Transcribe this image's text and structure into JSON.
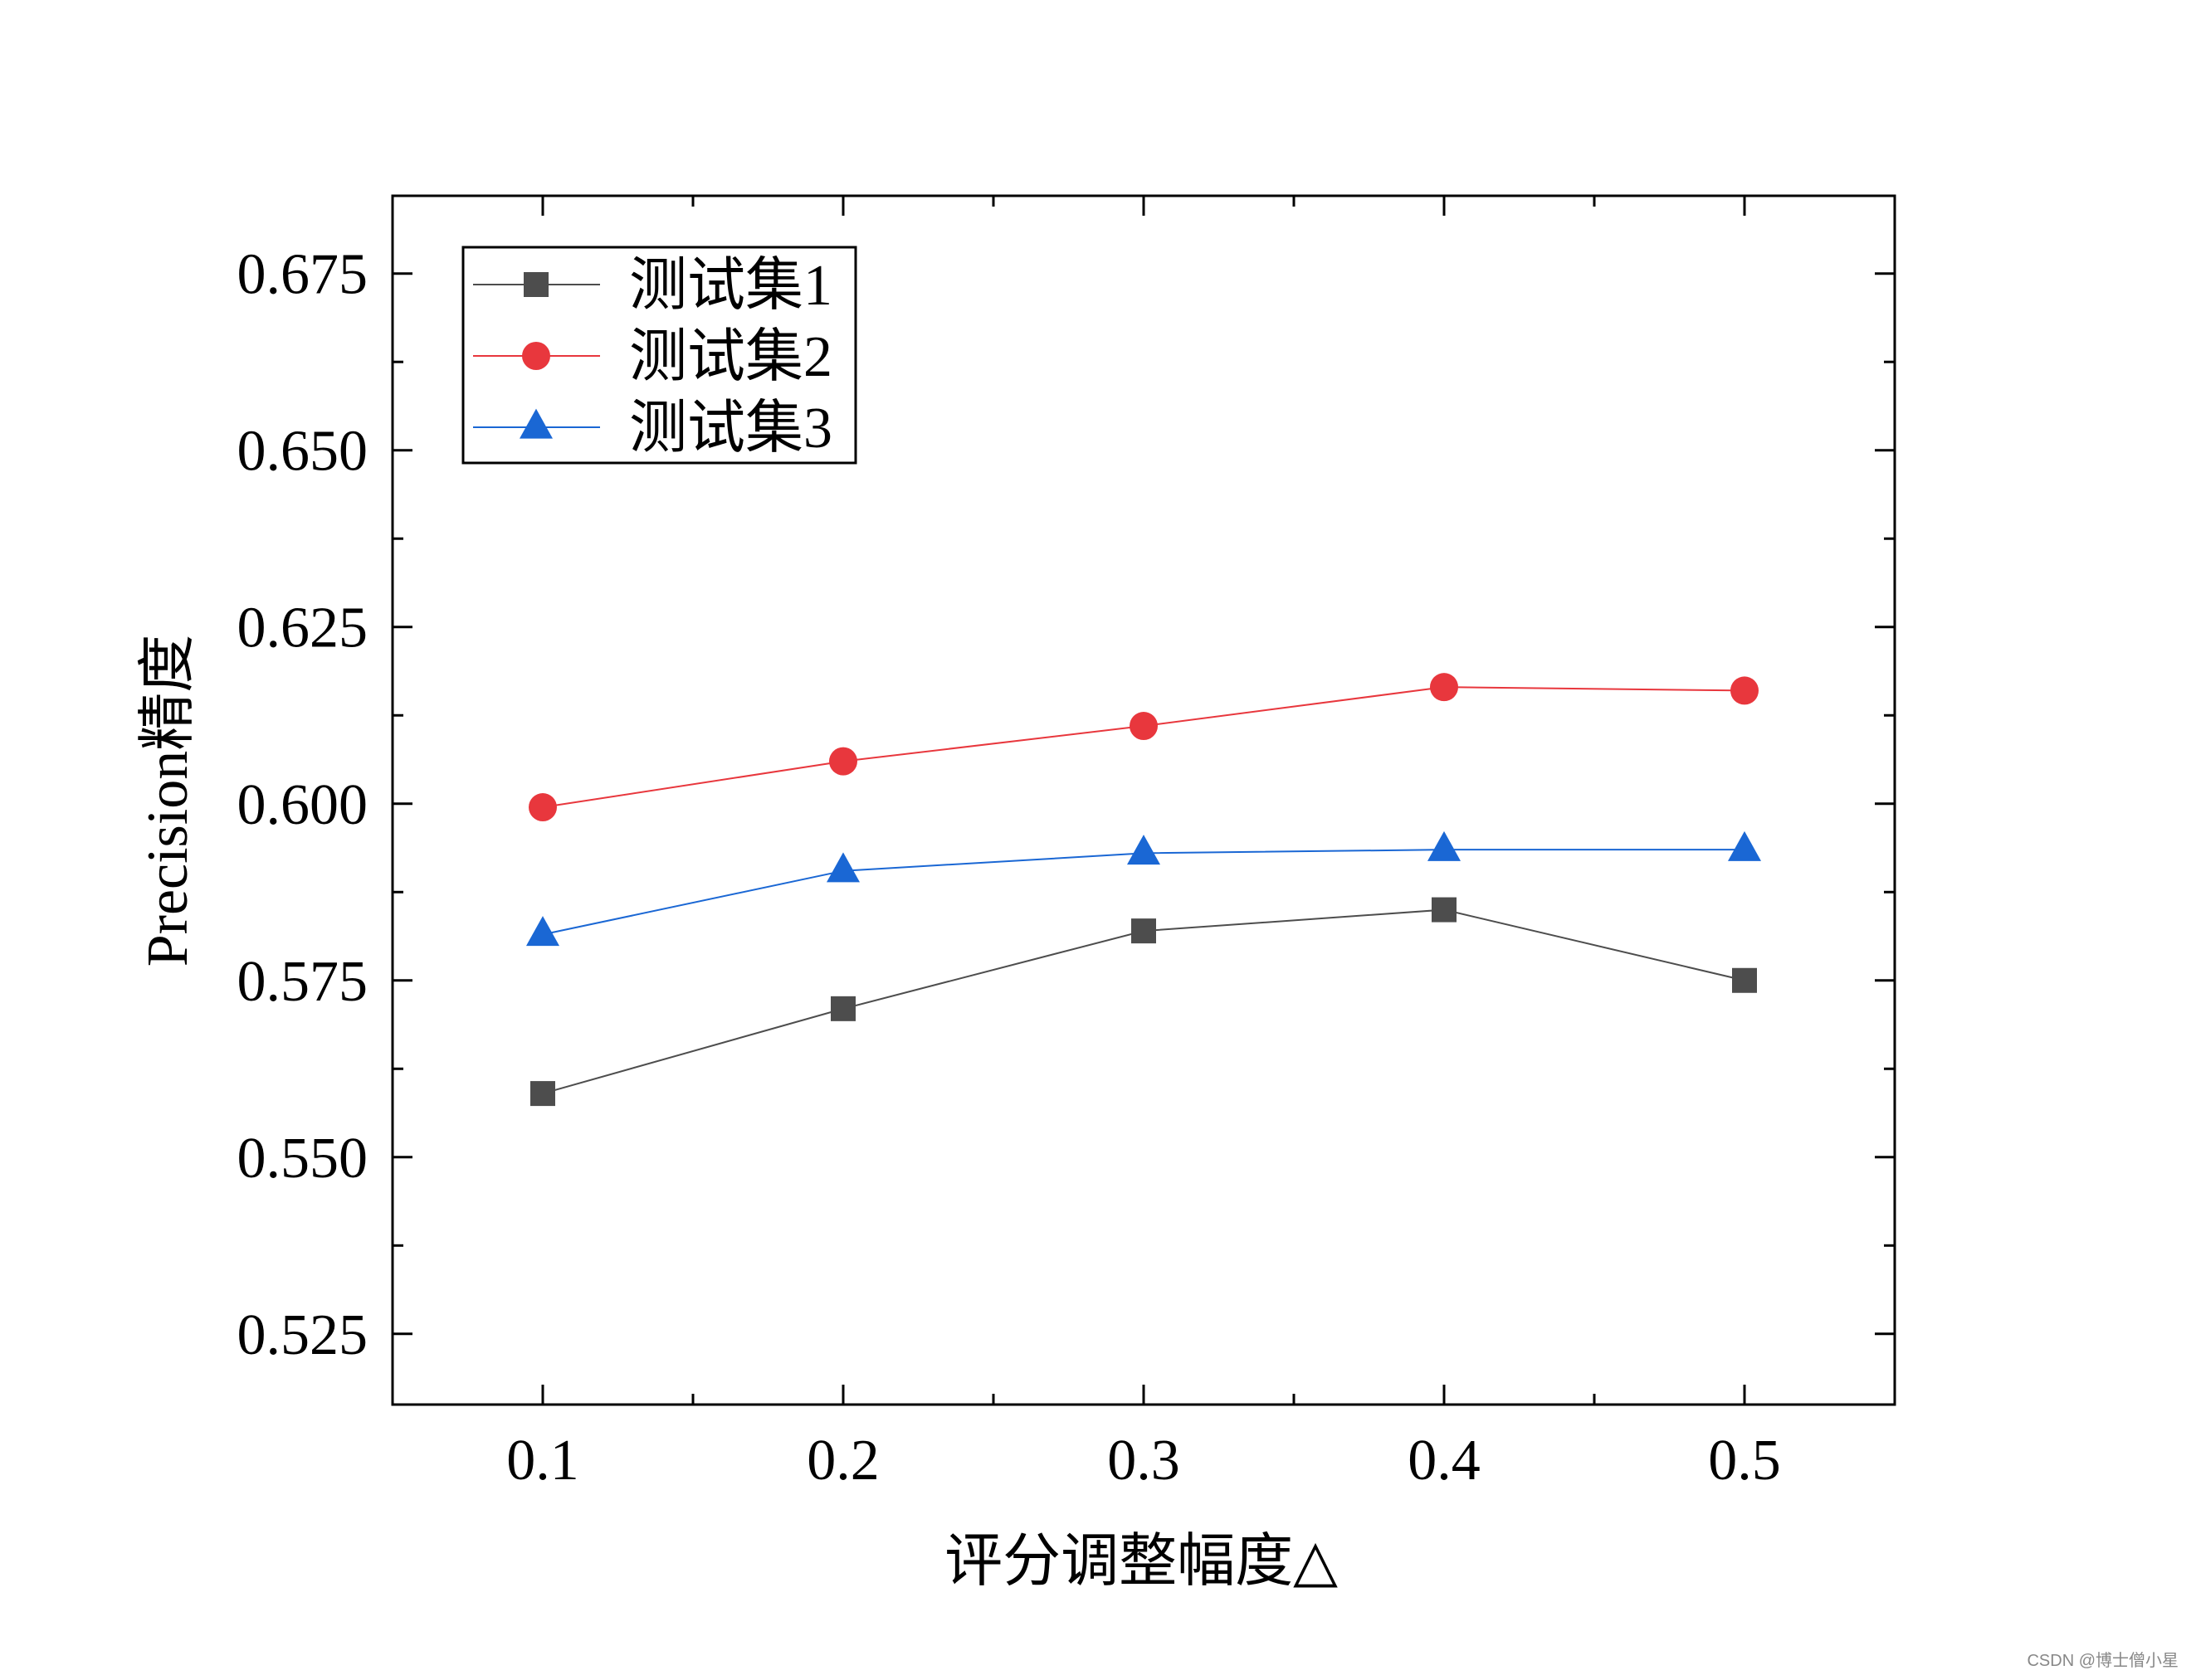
{
  "chart_data": {
    "type": "line",
    "title": "",
    "xlabel": "评分调整幅度△",
    "ylabel": "Precision精度",
    "x": [
      0.1,
      0.2,
      0.3,
      0.4,
      0.5
    ],
    "x_tick_labels": [
      "0.1",
      "0.2",
      "0.3",
      "0.4",
      "0.5"
    ],
    "xlim": [
      0.05,
      0.55
    ],
    "ylim": [
      0.515,
      0.686
    ],
    "y_ticks": [
      0.525,
      0.55,
      0.575,
      0.6,
      0.625,
      0.65,
      0.675
    ],
    "y_tick_labels": [
      "0.525",
      "0.550",
      "0.575",
      "0.600",
      "0.625",
      "0.650",
      "0.675"
    ],
    "grid": false,
    "legend_position": "top-left",
    "series": [
      {
        "name": "测试集1",
        "color": "#4d4d4d",
        "marker": "square",
        "values": [
          0.559,
          0.571,
          0.582,
          0.585,
          0.575
        ]
      },
      {
        "name": "测试集2",
        "color": "#e8373d",
        "marker": "circle",
        "values": [
          0.5995,
          0.606,
          0.611,
          0.6165,
          0.616
        ]
      },
      {
        "name": "测试集3",
        "color": "#1a67d4",
        "marker": "triangle",
        "values": [
          0.5815,
          0.5905,
          0.593,
          0.5935,
          0.5935
        ]
      }
    ]
  },
  "watermark": "CSDN @博士僧小星"
}
